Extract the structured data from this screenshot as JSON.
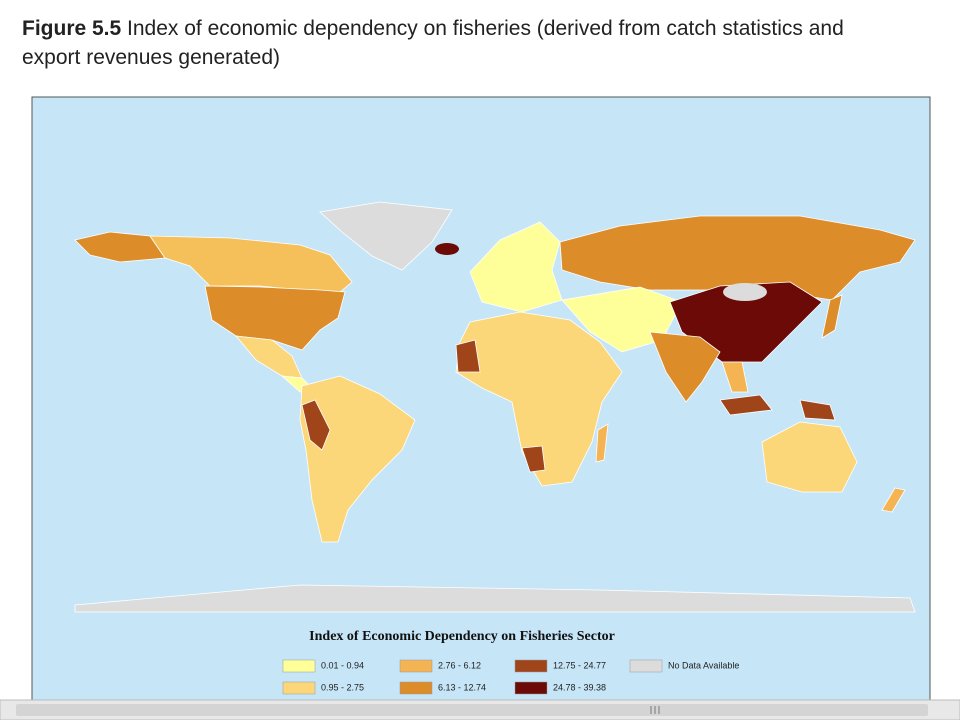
{
  "caption": {
    "label": "Figure 5.5",
    "text": "Index of economic dependency on fisheries (derived from catch statistics and export revenues generated)"
  },
  "legend": {
    "title": "Index of Economic Dependency on Fisheries Sector",
    "items": [
      {
        "label": "0.01 - 0.94",
        "color": "#ffff99"
      },
      {
        "label": "0.95 - 2.75",
        "color": "#fbd77a"
      },
      {
        "label": "2.76 - 6.12",
        "color": "#f5b454"
      },
      {
        "label": "6.13 - 12.74",
        "color": "#dd8c2a"
      },
      {
        "label": "12.75 - 24.77",
        "color": "#a0451a"
      },
      {
        "label": "24.78 - 39.38",
        "color": "#6b0a06"
      },
      {
        "label": "No Data Available",
        "color": "#dcdcdc"
      }
    ]
  }
}
